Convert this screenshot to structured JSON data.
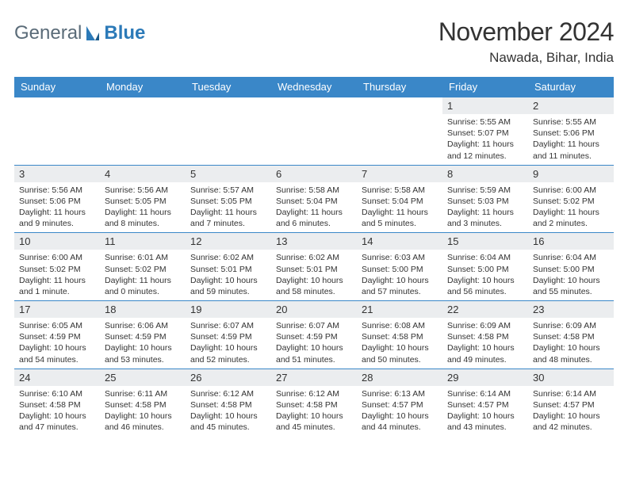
{
  "logo": {
    "general": "General",
    "blue": "Blue"
  },
  "title": "November 2024",
  "subtitle": "Nawada, Bihar, India",
  "colors": {
    "header_bg": "#3a87c8",
    "header_text": "#ffffff",
    "daynum_bg": "#ebedef",
    "row_border": "#3a87c8",
    "title_color": "#333333",
    "logo_gray": "#5a6b78",
    "logo_blue": "#2c7ab8"
  },
  "weekdays": [
    "Sunday",
    "Monday",
    "Tuesday",
    "Wednesday",
    "Thursday",
    "Friday",
    "Saturday"
  ],
  "weeks": [
    [
      null,
      null,
      null,
      null,
      null,
      {
        "n": "1",
        "sr": "Sunrise: 5:55 AM",
        "ss": "Sunset: 5:07 PM",
        "dl": "Daylight: 11 hours and 12 minutes."
      },
      {
        "n": "2",
        "sr": "Sunrise: 5:55 AM",
        "ss": "Sunset: 5:06 PM",
        "dl": "Daylight: 11 hours and 11 minutes."
      }
    ],
    [
      {
        "n": "3",
        "sr": "Sunrise: 5:56 AM",
        "ss": "Sunset: 5:06 PM",
        "dl": "Daylight: 11 hours and 9 minutes."
      },
      {
        "n": "4",
        "sr": "Sunrise: 5:56 AM",
        "ss": "Sunset: 5:05 PM",
        "dl": "Daylight: 11 hours and 8 minutes."
      },
      {
        "n": "5",
        "sr": "Sunrise: 5:57 AM",
        "ss": "Sunset: 5:05 PM",
        "dl": "Daylight: 11 hours and 7 minutes."
      },
      {
        "n": "6",
        "sr": "Sunrise: 5:58 AM",
        "ss": "Sunset: 5:04 PM",
        "dl": "Daylight: 11 hours and 6 minutes."
      },
      {
        "n": "7",
        "sr": "Sunrise: 5:58 AM",
        "ss": "Sunset: 5:04 PM",
        "dl": "Daylight: 11 hours and 5 minutes."
      },
      {
        "n": "8",
        "sr": "Sunrise: 5:59 AM",
        "ss": "Sunset: 5:03 PM",
        "dl": "Daylight: 11 hours and 3 minutes."
      },
      {
        "n": "9",
        "sr": "Sunrise: 6:00 AM",
        "ss": "Sunset: 5:02 PM",
        "dl": "Daylight: 11 hours and 2 minutes."
      }
    ],
    [
      {
        "n": "10",
        "sr": "Sunrise: 6:00 AM",
        "ss": "Sunset: 5:02 PM",
        "dl": "Daylight: 11 hours and 1 minute."
      },
      {
        "n": "11",
        "sr": "Sunrise: 6:01 AM",
        "ss": "Sunset: 5:02 PM",
        "dl": "Daylight: 11 hours and 0 minutes."
      },
      {
        "n": "12",
        "sr": "Sunrise: 6:02 AM",
        "ss": "Sunset: 5:01 PM",
        "dl": "Daylight: 10 hours and 59 minutes."
      },
      {
        "n": "13",
        "sr": "Sunrise: 6:02 AM",
        "ss": "Sunset: 5:01 PM",
        "dl": "Daylight: 10 hours and 58 minutes."
      },
      {
        "n": "14",
        "sr": "Sunrise: 6:03 AM",
        "ss": "Sunset: 5:00 PM",
        "dl": "Daylight: 10 hours and 57 minutes."
      },
      {
        "n": "15",
        "sr": "Sunrise: 6:04 AM",
        "ss": "Sunset: 5:00 PM",
        "dl": "Daylight: 10 hours and 56 minutes."
      },
      {
        "n": "16",
        "sr": "Sunrise: 6:04 AM",
        "ss": "Sunset: 5:00 PM",
        "dl": "Daylight: 10 hours and 55 minutes."
      }
    ],
    [
      {
        "n": "17",
        "sr": "Sunrise: 6:05 AM",
        "ss": "Sunset: 4:59 PM",
        "dl": "Daylight: 10 hours and 54 minutes."
      },
      {
        "n": "18",
        "sr": "Sunrise: 6:06 AM",
        "ss": "Sunset: 4:59 PM",
        "dl": "Daylight: 10 hours and 53 minutes."
      },
      {
        "n": "19",
        "sr": "Sunrise: 6:07 AM",
        "ss": "Sunset: 4:59 PM",
        "dl": "Daylight: 10 hours and 52 minutes."
      },
      {
        "n": "20",
        "sr": "Sunrise: 6:07 AM",
        "ss": "Sunset: 4:59 PM",
        "dl": "Daylight: 10 hours and 51 minutes."
      },
      {
        "n": "21",
        "sr": "Sunrise: 6:08 AM",
        "ss": "Sunset: 4:58 PM",
        "dl": "Daylight: 10 hours and 50 minutes."
      },
      {
        "n": "22",
        "sr": "Sunrise: 6:09 AM",
        "ss": "Sunset: 4:58 PM",
        "dl": "Daylight: 10 hours and 49 minutes."
      },
      {
        "n": "23",
        "sr": "Sunrise: 6:09 AM",
        "ss": "Sunset: 4:58 PM",
        "dl": "Daylight: 10 hours and 48 minutes."
      }
    ],
    [
      {
        "n": "24",
        "sr": "Sunrise: 6:10 AM",
        "ss": "Sunset: 4:58 PM",
        "dl": "Daylight: 10 hours and 47 minutes."
      },
      {
        "n": "25",
        "sr": "Sunrise: 6:11 AM",
        "ss": "Sunset: 4:58 PM",
        "dl": "Daylight: 10 hours and 46 minutes."
      },
      {
        "n": "26",
        "sr": "Sunrise: 6:12 AM",
        "ss": "Sunset: 4:58 PM",
        "dl": "Daylight: 10 hours and 45 minutes."
      },
      {
        "n": "27",
        "sr": "Sunrise: 6:12 AM",
        "ss": "Sunset: 4:58 PM",
        "dl": "Daylight: 10 hours and 45 minutes."
      },
      {
        "n": "28",
        "sr": "Sunrise: 6:13 AM",
        "ss": "Sunset: 4:57 PM",
        "dl": "Daylight: 10 hours and 44 minutes."
      },
      {
        "n": "29",
        "sr": "Sunrise: 6:14 AM",
        "ss": "Sunset: 4:57 PM",
        "dl": "Daylight: 10 hours and 43 minutes."
      },
      {
        "n": "30",
        "sr": "Sunrise: 6:14 AM",
        "ss": "Sunset: 4:57 PM",
        "dl": "Daylight: 10 hours and 42 minutes."
      }
    ]
  ]
}
